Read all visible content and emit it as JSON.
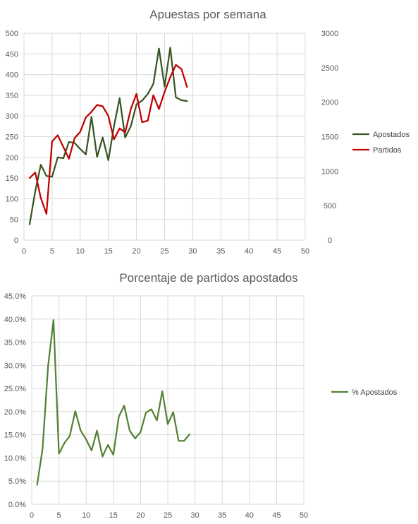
{
  "chart_data": [
    {
      "type": "line",
      "title": "Apuestas por semana",
      "xlabel": "",
      "ylabel": "",
      "xlim": [
        0,
        50
      ],
      "x_ticks": [
        "0",
        "5",
        "10",
        "15",
        "20",
        "25",
        "30",
        "35",
        "40",
        "45",
        "50"
      ],
      "ylim": [
        0,
        500
      ],
      "y_ticks": [
        "0",
        "50",
        "100",
        "150",
        "200",
        "250",
        "300",
        "350",
        "400",
        "450",
        "500"
      ],
      "y2lim": [
        0,
        3000
      ],
      "y2_ticks": [
        "0",
        "500",
        "1000",
        "1500",
        "2000",
        "2500",
        "3000"
      ],
      "grid": true,
      "legend": "right",
      "series": [
        {
          "name": "Apostados",
          "axis": "left",
          "color": "#375623",
          "x": [
            1,
            2,
            3,
            4,
            5,
            6,
            7,
            8,
            9,
            10,
            11,
            12,
            13,
            14,
            15,
            16,
            17,
            18,
            19,
            20,
            21,
            22,
            23,
            24,
            25,
            26,
            27,
            28,
            29
          ],
          "values": [
            38,
            118,
            182,
            155,
            153,
            200,
            198,
            237,
            235,
            220,
            207,
            298,
            201,
            248,
            193,
            275,
            343,
            248,
            275,
            328,
            337,
            353,
            377,
            463,
            371,
            465,
            345,
            338,
            336
          ]
        },
        {
          "name": "Partidos",
          "axis": "right",
          "color": "#C00000",
          "x": [
            1,
            2,
            3,
            4,
            5,
            6,
            7,
            8,
            9,
            10,
            11,
            12,
            13,
            14,
            15,
            16,
            17,
            18,
            19,
            20,
            21,
            22,
            23,
            24,
            25,
            26,
            27,
            28,
            29
          ],
          "values": [
            900,
            980,
            610,
            380,
            1430,
            1520,
            1350,
            1180,
            1480,
            1570,
            1780,
            1860,
            1960,
            1940,
            1800,
            1460,
            1620,
            1560,
            1900,
            2120,
            1710,
            1730,
            2100,
            1900,
            2150,
            2360,
            2540,
            2480,
            2220
          ]
        }
      ]
    },
    {
      "type": "line",
      "title": "Porcentaje de partidos apostados",
      "xlabel": "",
      "ylabel": "",
      "xlim": [
        0,
        50
      ],
      "x_ticks": [
        "0",
        "5",
        "10",
        "15",
        "20",
        "25",
        "30",
        "35",
        "40",
        "45",
        "50"
      ],
      "ylim": [
        0,
        45
      ],
      "y_ticks": [
        "0.0%",
        "5.0%",
        "10.0%",
        "15.0%",
        "20.0%",
        "25.0%",
        "30.0%",
        "35.0%",
        "40.0%",
        "45.0%"
      ],
      "grid": true,
      "legend": "right",
      "series": [
        {
          "name": "% Apostados",
          "color": "#548235",
          "x": [
            1,
            2,
            3,
            4,
            5,
            6,
            7,
            8,
            9,
            10,
            11,
            12,
            13,
            14,
            15,
            16,
            17,
            18,
            19,
            20,
            21,
            22,
            23,
            24,
            25,
            26,
            27,
            28,
            29
          ],
          "values": [
            4.2,
            12.0,
            29.8,
            39.8,
            10.9,
            13.2,
            14.8,
            20.1,
            15.9,
            14.0,
            11.6,
            15.9,
            10.3,
            12.8,
            10.7,
            18.9,
            21.3,
            15.9,
            14.2,
            15.6,
            19.8,
            20.5,
            18.1,
            24.4,
            17.3,
            19.9,
            13.7,
            13.7,
            15.1
          ]
        }
      ]
    }
  ]
}
